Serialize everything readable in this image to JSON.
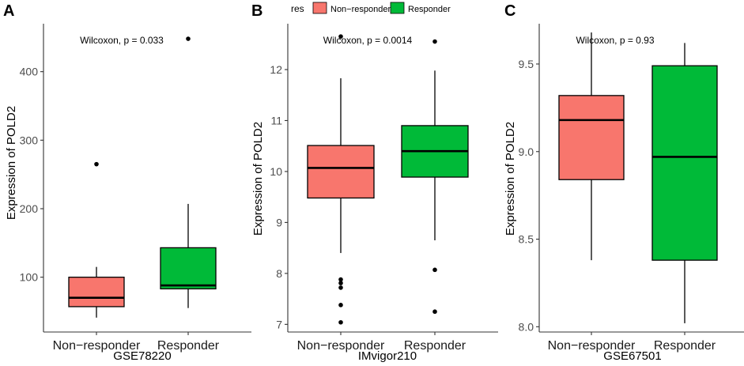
{
  "legend": {
    "title": "res",
    "entries": [
      {
        "label": "Non−responder",
        "color": "#F8766D"
      },
      {
        "label": "Responder",
        "color": "#00BA38"
      }
    ]
  },
  "chart_data": [
    {
      "type": "box",
      "panel": "A",
      "title": "",
      "xlabel": "GSE78220",
      "ylabel": "Expression of POLD2",
      "ylim": [
        20,
        470
      ],
      "yticks": [
        "100",
        "200",
        "300",
        "400"
      ],
      "ytick_values": [
        100,
        200,
        300,
        400
      ],
      "annotation": "Wilcoxon, p = 0.033",
      "categories": [
        "Non−responder",
        "Responder"
      ],
      "boxes": [
        {
          "name": "Non−responder",
          "color": "#F8766D",
          "whisker_low": 41,
          "q1": 57,
          "median": 70,
          "q3": 100,
          "whisker_high": 115,
          "outliers": [
            265
          ]
        },
        {
          "name": "Responder",
          "color": "#00BA38",
          "whisker_low": 55,
          "q1": 83,
          "median": 88,
          "q3": 143,
          "whisker_high": 207,
          "outliers": [
            448
          ]
        }
      ]
    },
    {
      "type": "box",
      "panel": "B",
      "title": "",
      "xlabel": "IMvigor210",
      "ylabel": "Expression of POLD2",
      "ylim": [
        6.85,
        12.9
      ],
      "yticks": [
        "7",
        "8",
        "9",
        "10",
        "11",
        "12"
      ],
      "ytick_values": [
        7,
        8,
        9,
        10,
        11,
        12
      ],
      "annotation": "Wilcoxon, p = 0.0014",
      "categories": [
        "Non−responder",
        "Responder"
      ],
      "boxes": [
        {
          "name": "Non−responder",
          "color": "#F8766D",
          "whisker_low": 8.4,
          "q1": 9.48,
          "median": 10.07,
          "q3": 10.51,
          "whisker_high": 11.83,
          "outliers": [
            7.04,
            7.38,
            7.72,
            7.81,
            7.88,
            12.65
          ]
        },
        {
          "name": "Responder",
          "color": "#00BA38",
          "whisker_low": 8.65,
          "q1": 9.89,
          "median": 10.4,
          "q3": 10.9,
          "whisker_high": 11.98,
          "outliers": [
            7.25,
            8.07,
            12.55
          ]
        }
      ]
    },
    {
      "type": "box",
      "panel": "C",
      "title": "",
      "xlabel": "GSE67501",
      "ylabel": "Expression of POLD2",
      "ylim": [
        7.97,
        9.73
      ],
      "yticks": [
        "8.0",
        "8.5",
        "9.0",
        "9.5"
      ],
      "ytick_values": [
        8.0,
        8.5,
        9.0,
        9.5
      ],
      "annotation": "Wilcoxon, p = 0.93",
      "categories": [
        "Non−responder",
        "Responder"
      ],
      "boxes": [
        {
          "name": "Non−responder",
          "color": "#F8766D",
          "whisker_low": 8.38,
          "q1": 8.84,
          "median": 9.18,
          "q3": 9.32,
          "whisker_high": 9.68,
          "outliers": []
        },
        {
          "name": "Responder",
          "color": "#00BA38",
          "whisker_low": 8.02,
          "q1": 8.38,
          "median": 8.97,
          "q3": 9.49,
          "whisker_high": 9.62,
          "outliers": []
        }
      ]
    }
  ]
}
